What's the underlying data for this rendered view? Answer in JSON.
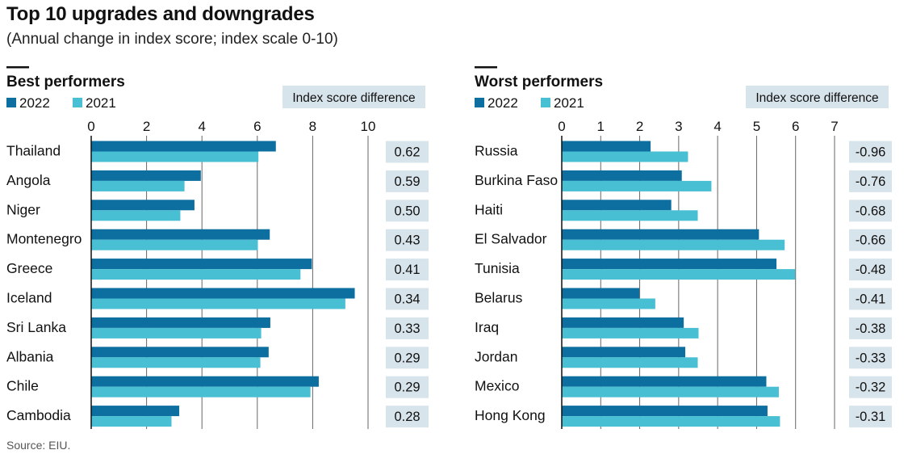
{
  "title": "Top 10 upgrades and downgrades",
  "subtitle": "(Annual change in index score; index scale 0-10)",
  "source": "Source: EIU.",
  "colors": {
    "s2022": "#0d6fa0",
    "s2021": "#48bfd3",
    "diff_box": "#d8e4eb",
    "grid": "#666666"
  },
  "chart_data": [
    {
      "type": "bar",
      "orientation": "horizontal",
      "title": "Best performers",
      "diff_header": "Index score difference",
      "series_names": [
        "2022",
        "2021"
      ],
      "xlim": [
        0,
        10
      ],
      "ticks": [
        0,
        2,
        4,
        6,
        8,
        10
      ],
      "categories": [
        "Thailand",
        "Angola",
        "Niger",
        "Montenegro",
        "Greece",
        "Iceland",
        "Sri Lanka",
        "Albania",
        "Chile",
        "Cambodia"
      ],
      "series": [
        {
          "name": "2022",
          "values": [
            6.67,
            3.96,
            3.73,
            6.45,
            7.97,
            9.52,
            6.47,
            6.41,
            8.22,
            3.18
          ]
        },
        {
          "name": "2021",
          "values": [
            6.04,
            3.37,
            3.22,
            6.02,
            7.56,
            9.18,
            6.14,
            6.11,
            7.92,
            2.9
          ]
        }
      ],
      "differences": [
        "0.62",
        "0.59",
        "0.50",
        "0.43",
        "0.41",
        "0.34",
        "0.33",
        "0.29",
        "0.29",
        "0.28"
      ]
    },
    {
      "type": "bar",
      "orientation": "horizontal",
      "title": "Worst performers",
      "diff_header": "Index score difference",
      "series_names": [
        "2022",
        "2021"
      ],
      "xlim": [
        0,
        7
      ],
      "ticks": [
        0,
        1,
        2,
        3,
        4,
        5,
        6,
        7
      ],
      "categories": [
        "Russia",
        "Burkina Faso",
        "Haiti",
        "El Salvador",
        "Tunisia",
        "Belarus",
        "Iraq",
        "Jordan",
        "Mexico",
        "Hong Kong"
      ],
      "series": [
        {
          "name": "2022",
          "values": [
            2.28,
            3.08,
            2.81,
            5.06,
            5.51,
            1.99,
            3.13,
            3.17,
            5.25,
            5.28
          ]
        },
        {
          "name": "2021",
          "values": [
            3.24,
            3.84,
            3.49,
            5.72,
            5.99,
            2.4,
            3.51,
            3.49,
            5.57,
            5.6
          ]
        }
      ],
      "differences": [
        "-0.96",
        "-0.76",
        "-0.68",
        "-0.66",
        "-0.48",
        "-0.41",
        "-0.38",
        "-0.33",
        "-0.32",
        "-0.31"
      ]
    }
  ]
}
